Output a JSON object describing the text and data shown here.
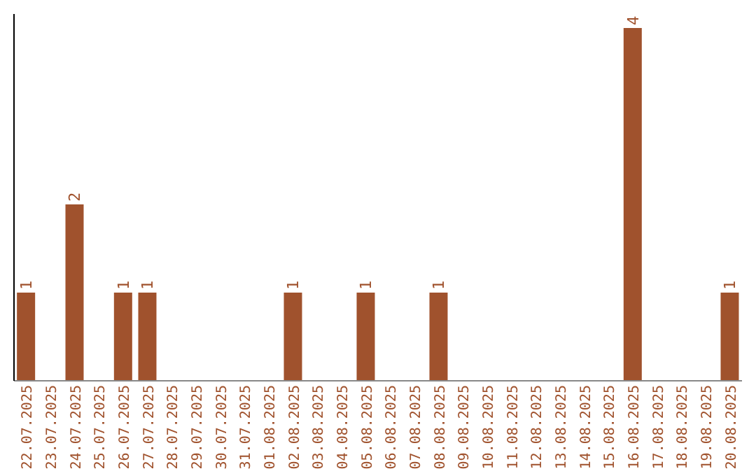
{
  "chart_data": {
    "type": "bar",
    "categories": [
      "22.07.2025",
      "23.07.2025",
      "24.07.2025",
      "25.07.2025",
      "26.07.2025",
      "27.07.2025",
      "28.07.2025",
      "29.07.2025",
      "30.07.2025",
      "31.07.2025",
      "01.08.2025",
      "02.08.2025",
      "03.08.2025",
      "04.08.2025",
      "05.08.2025",
      "06.08.2025",
      "07.08.2025",
      "08.08.2025",
      "09.08.2025",
      "10.08.2025",
      "11.08.2025",
      "12.08.2025",
      "13.08.2025",
      "14.08.2025",
      "15.08.2025",
      "16.08.2025",
      "17.08.2025",
      "18.08.2025",
      "19.08.2025",
      "20.08.2025"
    ],
    "values": [
      1,
      0,
      2,
      0,
      1,
      1,
      0,
      0,
      0,
      0,
      0,
      1,
      0,
      0,
      1,
      0,
      0,
      1,
      0,
      0,
      0,
      0,
      0,
      0,
      0,
      4,
      0,
      0,
      0,
      1
    ],
    "value_labels": [
      "1",
      null,
      "2",
      null,
      "1",
      "1",
      null,
      null,
      null,
      null,
      null,
      "1",
      null,
      null,
      "1",
      null,
      null,
      "1",
      null,
      null,
      null,
      null,
      null,
      null,
      null,
      "4",
      null,
      null,
      null,
      "1"
    ],
    "color": "#a0522d",
    "grid": false,
    "legend": false
  }
}
